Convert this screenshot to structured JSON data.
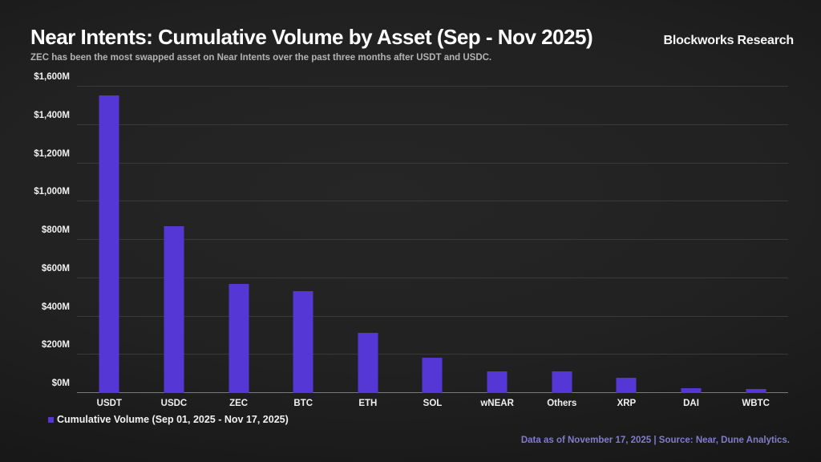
{
  "header": {
    "title": "Near Intents: Cumulative Volume by Asset (Sep - Nov 2025)",
    "brand": "Blockworks Research",
    "subtitle": "ZEC has been the most swapped asset on Near Intents over the past three months after USDT and USDC."
  },
  "chart_data": {
    "type": "bar",
    "title": "Near Intents: Cumulative Volume by Asset (Sep - Nov 2025)",
    "categories": [
      "USDT",
      "USDC",
      "ZEC",
      "BTC",
      "ETH",
      "SOL",
      "wNEAR",
      "Others",
      "XRP",
      "DAI",
      "WBTC"
    ],
    "values": [
      1555,
      870,
      570,
      530,
      315,
      183,
      115,
      112,
      80,
      25,
      20
    ],
    "xlabel": "",
    "ylabel": "",
    "ylim": [
      0,
      1600
    ],
    "ytick_values": [
      0,
      200,
      400,
      600,
      800,
      1000,
      1200,
      1400,
      1600
    ],
    "ytick_labels": [
      "$0M",
      "$200M",
      "$400M",
      "$600M",
      "$800M",
      "$1,000M",
      "$1,200M",
      "$1,400M",
      "$1,600M"
    ],
    "grid": true,
    "legend_position": "bottom-left",
    "legend_label": "Cumulative Volume (Sep 01, 2025 - Nov 17, 2025)",
    "bar_color": "#5537d6"
  },
  "footer": {
    "text": "Data as of November 17, 2025 | Source: Near, Dune Analytics."
  },
  "colors": {
    "background": "#212121",
    "bar": "#5537d6",
    "gridline": "#3a3a3a",
    "axis_line": "#7a7a7a",
    "title_text": "#ffffff",
    "subtitle_text": "#b3b3b3",
    "footer_text": "#837bca"
  }
}
